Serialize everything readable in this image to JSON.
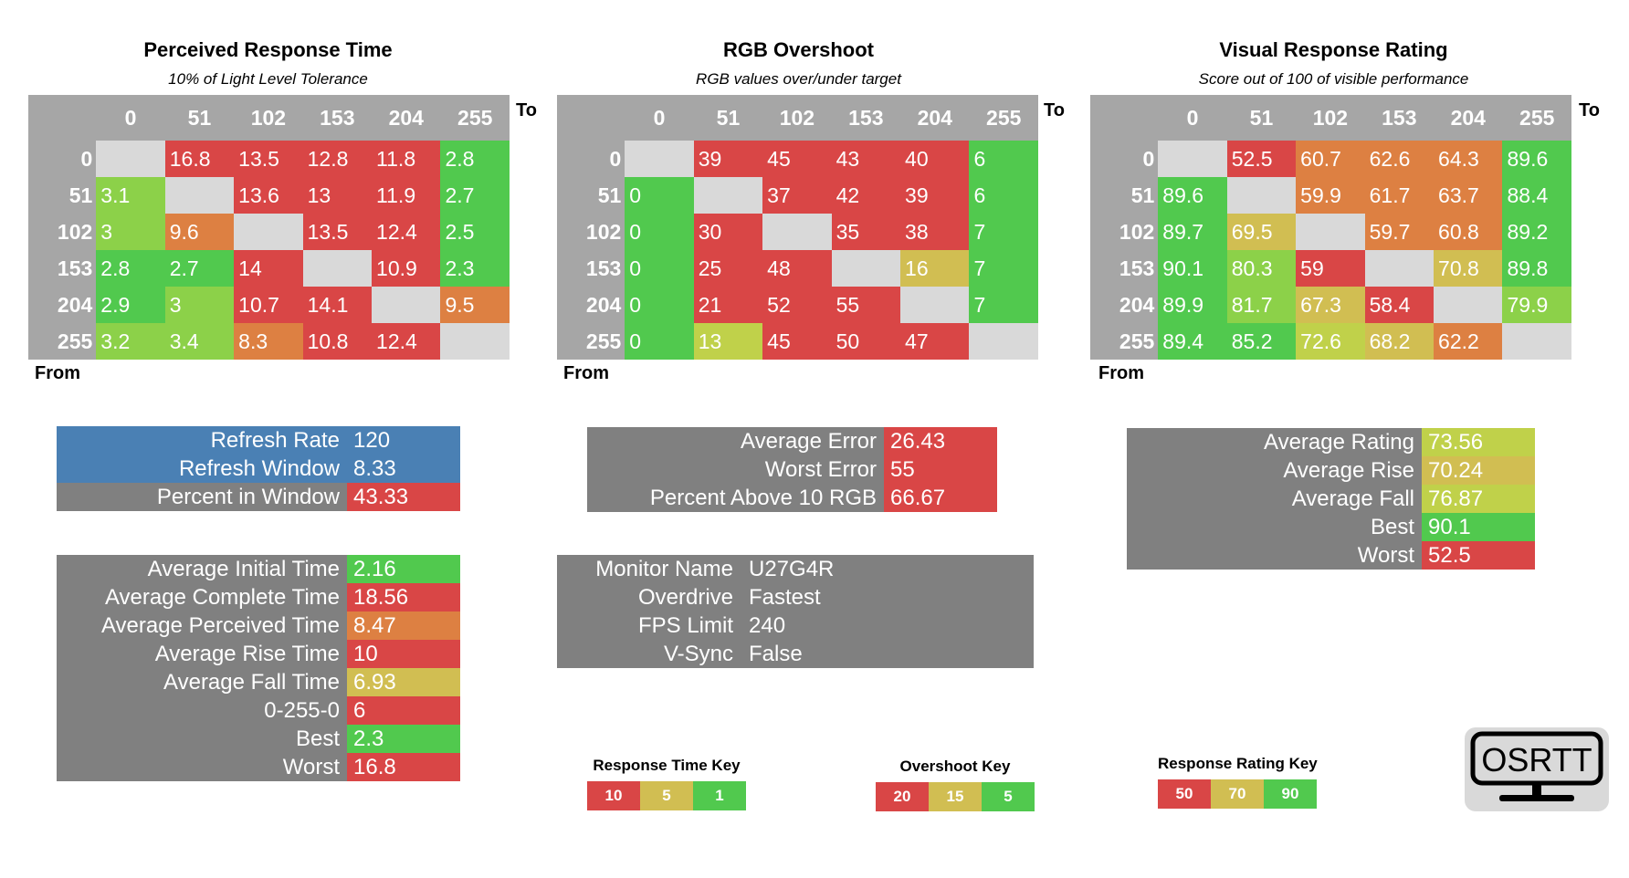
{
  "panels": [
    {
      "id": "response",
      "title": "Perceived Response Time",
      "subtitle": "10% of Light Level Tolerance",
      "to_label": "To",
      "from_label": "From",
      "columns": [
        "0",
        "51",
        "102",
        "153",
        "204",
        "255"
      ],
      "rows": [
        "0",
        "51",
        "102",
        "153",
        "204",
        "255"
      ],
      "values": [
        [
          null,
          "16.8",
          "13.5",
          "12.8",
          "11.8",
          "2.8"
        ],
        [
          "3.1",
          null,
          "13.6",
          "13",
          "11.9",
          "2.7"
        ],
        [
          "3",
          "9.6",
          null,
          "13.5",
          "12.4",
          "2.5"
        ],
        [
          "2.8",
          "2.7",
          "14",
          null,
          "10.9",
          "2.3"
        ],
        [
          "2.9",
          "3",
          "10.7",
          "14.1",
          null,
          "9.5"
        ],
        [
          "3.2",
          "3.4",
          "8.3",
          "10.8",
          "12.4",
          null
        ]
      ]
    },
    {
      "id": "overshoot",
      "title": "RGB Overshoot",
      "subtitle": "RGB values over/under target",
      "to_label": "To",
      "from_label": "From",
      "columns": [
        "0",
        "51",
        "102",
        "153",
        "204",
        "255"
      ],
      "rows": [
        "0",
        "51",
        "102",
        "153",
        "204",
        "255"
      ],
      "values": [
        [
          null,
          "39",
          "45",
          "43",
          "40",
          "6"
        ],
        [
          "0",
          null,
          "37",
          "42",
          "39",
          "6"
        ],
        [
          "0",
          "30",
          null,
          "35",
          "38",
          "7"
        ],
        [
          "0",
          "25",
          "48",
          null,
          "16",
          "7"
        ],
        [
          "0",
          "21",
          "52",
          "55",
          null,
          "7"
        ],
        [
          "0",
          "13",
          "45",
          "50",
          "47",
          null
        ]
      ]
    },
    {
      "id": "rating",
      "title": "Visual Response Rating",
      "subtitle": "Score out of 100 of visible performance",
      "to_label": "To",
      "from_label": "From",
      "columns": [
        "0",
        "51",
        "102",
        "153",
        "204",
        "255"
      ],
      "rows": [
        "0",
        "51",
        "102",
        "153",
        "204",
        "255"
      ],
      "values": [
        [
          null,
          "52.5",
          "60.7",
          "62.6",
          "64.3",
          "89.6"
        ],
        [
          "89.6",
          null,
          "59.9",
          "61.7",
          "63.7",
          "88.4"
        ],
        [
          "89.7",
          "69.5",
          null,
          "59.7",
          "60.8",
          "89.2"
        ],
        [
          "90.1",
          "80.3",
          "59",
          null,
          "70.8",
          "89.8"
        ],
        [
          "89.9",
          "81.7",
          "67.3",
          "58.4",
          null,
          "79.9"
        ],
        [
          "89.4",
          "85.2",
          "72.6",
          "68.2",
          "62.2",
          null
        ]
      ]
    }
  ],
  "refresh": {
    "rows": [
      {
        "label": "Refresh Rate",
        "value": "120"
      },
      {
        "label": "Refresh Window",
        "value": "8.33"
      },
      {
        "label": "Percent in Window",
        "value": "43.33"
      }
    ]
  },
  "times": {
    "rows": [
      {
        "label": "Average Initial Time",
        "value": "2.16"
      },
      {
        "label": "Average Complete Time",
        "value": "18.56"
      },
      {
        "label": "Average Perceived Time",
        "value": "8.47"
      },
      {
        "label": "Average Rise Time",
        "value": "10"
      },
      {
        "label": "Average Fall Time",
        "value": "6.93"
      },
      {
        "label": "0-255-0",
        "value": "6"
      },
      {
        "label": "Best",
        "value": "2.3"
      },
      {
        "label": "Worst",
        "value": "16.8"
      }
    ]
  },
  "errors": {
    "rows": [
      {
        "label": "Average Error",
        "value": "26.43"
      },
      {
        "label": "Worst Error",
        "value": "55"
      },
      {
        "label": "Percent Above 10 RGB",
        "value": "66.67"
      }
    ]
  },
  "monitor": {
    "rows": [
      {
        "label": "Monitor Name",
        "value": "U27G4R"
      },
      {
        "label": "Overdrive",
        "value": "Fastest"
      },
      {
        "label": "FPS Limit",
        "value": "240"
      },
      {
        "label": "V-Sync",
        "value": "False"
      }
    ]
  },
  "ratings": {
    "rows": [
      {
        "label": "Average Rating",
        "value": "73.56"
      },
      {
        "label": "Average Rise",
        "value": "70.24"
      },
      {
        "label": "Average Fall",
        "value": "76.87"
      },
      {
        "label": "Best",
        "value": "90.1"
      },
      {
        "label": "Worst",
        "value": "52.5"
      }
    ]
  },
  "keys": {
    "response": {
      "title": "Response Time Key",
      "values": [
        "10",
        "5",
        "1"
      ]
    },
    "overshoot": {
      "title": "Overshoot Key",
      "values": [
        "20",
        "15",
        "5"
      ]
    },
    "rating": {
      "title": "Response Rating Key",
      "values": [
        "50",
        "70",
        "90"
      ]
    }
  },
  "logo_text": "OSRTT",
  "colors": {
    "header_gray": "#a6a6a6",
    "diagonal_gray": "#d9d9d9",
    "label_gray": "#808080",
    "blue": "#4a80b4",
    "red": "#d94646",
    "orange": "#dd8042",
    "yellow": "#d1be52",
    "lime": "#c0d14a",
    "light_green": "#8cd149",
    "green": "#51c94e"
  },
  "chart_data": [
    {
      "type": "heatmap",
      "title": "Perceived Response Time",
      "subtitle": "10% of Light Level Tolerance",
      "xlabel": "To",
      "ylabel": "From",
      "x": [
        0,
        51,
        102,
        153,
        204,
        255
      ],
      "y": [
        0,
        51,
        102,
        153,
        204,
        255
      ],
      "z": [
        [
          null,
          16.8,
          13.5,
          12.8,
          11.8,
          2.8
        ],
        [
          3.1,
          null,
          13.6,
          13,
          11.9,
          2.7
        ],
        [
          3,
          9.6,
          null,
          13.5,
          12.4,
          2.5
        ],
        [
          2.8,
          2.7,
          14,
          null,
          10.9,
          2.3
        ],
        [
          2.9,
          3,
          10.7,
          14.1,
          null,
          9.5
        ],
        [
          3.2,
          3.4,
          8.3,
          10.8,
          12.4,
          null
        ]
      ]
    },
    {
      "type": "heatmap",
      "title": "RGB Overshoot",
      "subtitle": "RGB values over/under target",
      "xlabel": "To",
      "ylabel": "From",
      "x": [
        0,
        51,
        102,
        153,
        204,
        255
      ],
      "y": [
        0,
        51,
        102,
        153,
        204,
        255
      ],
      "z": [
        [
          null,
          39,
          45,
          43,
          40,
          6
        ],
        [
          0,
          null,
          37,
          42,
          39,
          6
        ],
        [
          0,
          30,
          null,
          35,
          38,
          7
        ],
        [
          0,
          25,
          48,
          null,
          16,
          7
        ],
        [
          0,
          21,
          52,
          55,
          null,
          7
        ],
        [
          0,
          13,
          45,
          50,
          47,
          null
        ]
      ]
    },
    {
      "type": "heatmap",
      "title": "Visual Response Rating",
      "subtitle": "Score out of 100 of visible performance",
      "xlabel": "To",
      "ylabel": "From",
      "x": [
        0,
        51,
        102,
        153,
        204,
        255
      ],
      "y": [
        0,
        51,
        102,
        153,
        204,
        255
      ],
      "z": [
        [
          null,
          52.5,
          60.7,
          62.6,
          64.3,
          89.6
        ],
        [
          89.6,
          null,
          59.9,
          61.7,
          63.7,
          88.4
        ],
        [
          89.7,
          69.5,
          null,
          59.7,
          60.8,
          89.2
        ],
        [
          90.1,
          80.3,
          59,
          null,
          70.8,
          89.8
        ],
        [
          89.9,
          81.7,
          67.3,
          58.4,
          null,
          79.9
        ],
        [
          89.4,
          85.2,
          72.6,
          68.2,
          62.2,
          null
        ]
      ]
    }
  ]
}
